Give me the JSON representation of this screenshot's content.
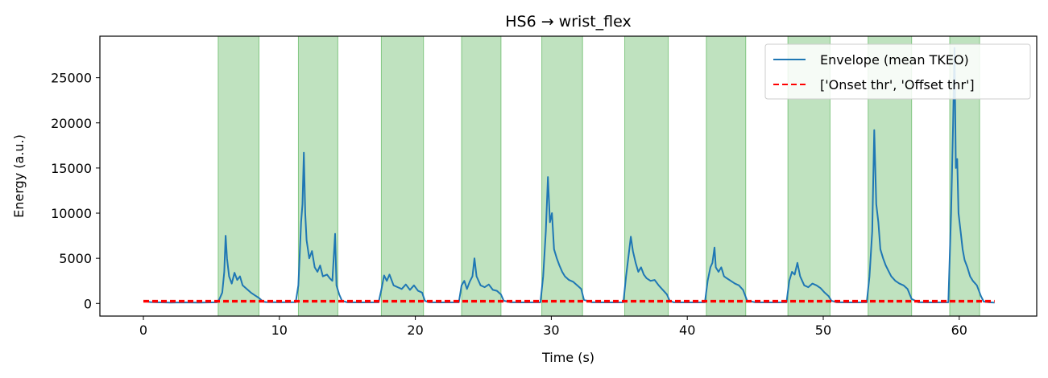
{
  "chart_data": {
    "type": "line",
    "title": "HS6 → wrist_flex",
    "xlabel": "Time (s)",
    "ylabel": "Energy (a.u.)",
    "xlim": [
      -3.2,
      65.7
    ],
    "ylim": [
      -1400,
      29600
    ],
    "x_ticks": [
      0,
      10,
      20,
      30,
      40,
      50,
      60
    ],
    "y_ticks": [
      0,
      5000,
      10000,
      15000,
      20000,
      25000
    ],
    "grid": false,
    "legend_position": "top-right",
    "colors": {
      "envelope": "#1f77b4",
      "threshold": "#ff0000",
      "span_fill": "#2ca02c",
      "span_edge": "#2ca02c"
    },
    "active_spans": [
      [
        5.5,
        8.5
      ],
      [
        11.4,
        14.3
      ],
      [
        17.5,
        20.6
      ],
      [
        23.4,
        26.3
      ],
      [
        29.3,
        32.3
      ],
      [
        35.4,
        38.6
      ],
      [
        41.4,
        44.3
      ],
      [
        47.4,
        50.5
      ],
      [
        53.3,
        56.5
      ],
      [
        59.3,
        61.5
      ]
    ],
    "series": [
      {
        "name": "Envelope (mean TKEO)",
        "style": "solid",
        "points": [
          [
            0,
            300
          ],
          [
            0.5,
            150
          ],
          [
            1,
            120
          ],
          [
            2,
            100
          ],
          [
            3,
            110
          ],
          [
            4,
            100
          ],
          [
            5,
            110
          ],
          [
            5.4,
            120
          ],
          [
            5.6,
            500
          ],
          [
            5.8,
            1200
          ],
          [
            5.95,
            3500
          ],
          [
            6.05,
            7500
          ],
          [
            6.15,
            5000
          ],
          [
            6.3,
            3000
          ],
          [
            6.5,
            2200
          ],
          [
            6.7,
            3400
          ],
          [
            6.9,
            2600
          ],
          [
            7.1,
            3000
          ],
          [
            7.3,
            2000
          ],
          [
            7.6,
            1600
          ],
          [
            7.9,
            1200
          ],
          [
            8.2,
            900
          ],
          [
            8.5,
            600
          ],
          [
            8.8,
            200
          ],
          [
            9,
            150
          ],
          [
            10,
            120
          ],
          [
            11.2,
            130
          ],
          [
            11.4,
            2000
          ],
          [
            11.6,
            9000
          ],
          [
            11.7,
            11000
          ],
          [
            11.8,
            16700
          ],
          [
            11.9,
            10000
          ],
          [
            12.0,
            7000
          ],
          [
            12.2,
            5000
          ],
          [
            12.4,
            5800
          ],
          [
            12.6,
            4000
          ],
          [
            12.8,
            3500
          ],
          [
            13.0,
            4200
          ],
          [
            13.2,
            3000
          ],
          [
            13.5,
            3200
          ],
          [
            13.7,
            2800
          ],
          [
            13.9,
            2500
          ],
          [
            14.1,
            7700
          ],
          [
            14.2,
            2000
          ],
          [
            14.4,
            1000
          ],
          [
            14.6,
            300
          ],
          [
            15,
            120
          ],
          [
            16,
            110
          ],
          [
            17.3,
            120
          ],
          [
            17.5,
            1500
          ],
          [
            17.7,
            3100
          ],
          [
            17.9,
            2500
          ],
          [
            18.1,
            3200
          ],
          [
            18.4,
            2000
          ],
          [
            18.7,
            1800
          ],
          [
            19.0,
            1600
          ],
          [
            19.3,
            2100
          ],
          [
            19.6,
            1500
          ],
          [
            19.9,
            2000
          ],
          [
            20.2,
            1400
          ],
          [
            20.5,
            1200
          ],
          [
            20.7,
            300
          ],
          [
            21,
            120
          ],
          [
            22,
            110
          ],
          [
            23.2,
            120
          ],
          [
            23.4,
            2000
          ],
          [
            23.6,
            2500
          ],
          [
            23.8,
            1600
          ],
          [
            24.0,
            2400
          ],
          [
            24.2,
            3000
          ],
          [
            24.35,
            5000
          ],
          [
            24.5,
            3000
          ],
          [
            24.8,
            2000
          ],
          [
            25.1,
            1800
          ],
          [
            25.4,
            2100
          ],
          [
            25.7,
            1500
          ],
          [
            26.0,
            1400
          ],
          [
            26.3,
            1000
          ],
          [
            26.5,
            300
          ],
          [
            27,
            120
          ],
          [
            28,
            110
          ],
          [
            29.2,
            120
          ],
          [
            29.4,
            3000
          ],
          [
            29.6,
            8000
          ],
          [
            29.75,
            14000
          ],
          [
            29.9,
            9000
          ],
          [
            30.05,
            10000
          ],
          [
            30.2,
            6000
          ],
          [
            30.4,
            5000
          ],
          [
            30.6,
            4200
          ],
          [
            30.8,
            3500
          ],
          [
            31.0,
            3000
          ],
          [
            31.3,
            2600
          ],
          [
            31.6,
            2400
          ],
          [
            31.9,
            2000
          ],
          [
            32.2,
            1600
          ],
          [
            32.4,
            400
          ],
          [
            33,
            120
          ],
          [
            34,
            110
          ],
          [
            35.3,
            120
          ],
          [
            35.5,
            3000
          ],
          [
            35.7,
            5500
          ],
          [
            35.85,
            7400
          ],
          [
            36.0,
            5800
          ],
          [
            36.2,
            4500
          ],
          [
            36.4,
            3500
          ],
          [
            36.6,
            4000
          ],
          [
            36.8,
            3200
          ],
          [
            37.0,
            2800
          ],
          [
            37.3,
            2500
          ],
          [
            37.6,
            2600
          ],
          [
            37.9,
            2000
          ],
          [
            38.2,
            1500
          ],
          [
            38.5,
            1000
          ],
          [
            38.7,
            300
          ],
          [
            39,
            120
          ],
          [
            40,
            110
          ],
          [
            41.3,
            120
          ],
          [
            41.5,
            2500
          ],
          [
            41.7,
            4000
          ],
          [
            41.85,
            4500
          ],
          [
            42.0,
            6200
          ],
          [
            42.1,
            4000
          ],
          [
            42.3,
            3500
          ],
          [
            42.5,
            4000
          ],
          [
            42.7,
            3000
          ],
          [
            42.9,
            2800
          ],
          [
            43.2,
            2500
          ],
          [
            43.5,
            2200
          ],
          [
            43.8,
            2000
          ],
          [
            44.1,
            1500
          ],
          [
            44.4,
            300
          ],
          [
            45,
            120
          ],
          [
            46,
            110
          ],
          [
            47.3,
            120
          ],
          [
            47.5,
            2500
          ],
          [
            47.7,
            3500
          ],
          [
            47.9,
            3200
          ],
          [
            48.1,
            4500
          ],
          [
            48.3,
            3000
          ],
          [
            48.6,
            2000
          ],
          [
            48.9,
            1800
          ],
          [
            49.2,
            2200
          ],
          [
            49.5,
            2000
          ],
          [
            49.8,
            1700
          ],
          [
            50.1,
            1200
          ],
          [
            50.4,
            800
          ],
          [
            50.6,
            300
          ],
          [
            51,
            120
          ],
          [
            52,
            110
          ],
          [
            53.2,
            120
          ],
          [
            53.4,
            3000
          ],
          [
            53.6,
            8000
          ],
          [
            53.75,
            19200
          ],
          [
            53.9,
            11000
          ],
          [
            54.05,
            9000
          ],
          [
            54.2,
            6000
          ],
          [
            54.4,
            5000
          ],
          [
            54.6,
            4200
          ],
          [
            54.8,
            3600
          ],
          [
            55.0,
            3000
          ],
          [
            55.3,
            2500
          ],
          [
            55.6,
            2200
          ],
          [
            55.9,
            2000
          ],
          [
            56.2,
            1600
          ],
          [
            56.5,
            500
          ],
          [
            57,
            120
          ],
          [
            58,
            110
          ],
          [
            59.2,
            120
          ],
          [
            59.4,
            10000
          ],
          [
            59.55,
            20000
          ],
          [
            59.65,
            28300
          ],
          [
            59.75,
            15000
          ],
          [
            59.85,
            16000
          ],
          [
            59.95,
            10000
          ],
          [
            60.1,
            8000
          ],
          [
            60.25,
            6000
          ],
          [
            60.4,
            4800
          ],
          [
            60.6,
            4000
          ],
          [
            60.8,
            3000
          ],
          [
            61.0,
            2500
          ],
          [
            61.3,
            2000
          ],
          [
            61.6,
            800
          ],
          [
            61.8,
            200
          ],
          [
            62.2,
            120
          ],
          [
            62.6,
            100
          ]
        ]
      },
      {
        "name": "['Onset thr', 'Offset thr']",
        "style": "dashed",
        "x_range": [
          0,
          62.6
        ],
        "levels": [
          300,
          180
        ]
      }
    ]
  }
}
